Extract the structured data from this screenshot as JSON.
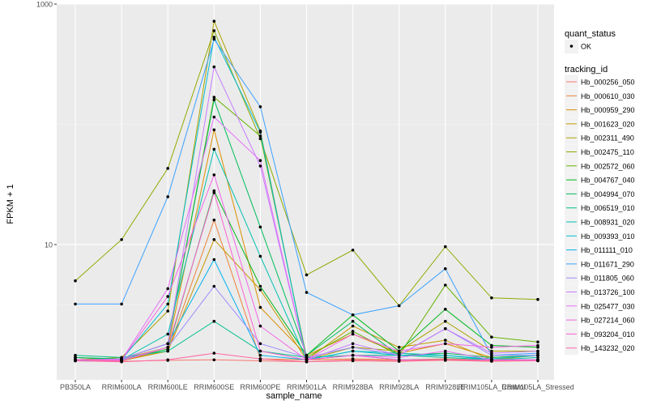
{
  "chart_data": {
    "type": "line",
    "xlabel": "sample_name",
    "ylabel": "FPKM + 1",
    "y_scale": "log10",
    "ylim": [
      1,
      1000
    ],
    "y_ticks": [
      {
        "value": 1000,
        "label": "1000"
      },
      {
        "value": 10,
        "label": "10"
      }
    ],
    "grid": true,
    "panel_background": "#ebebeb",
    "point_color": "#000000",
    "categories": [
      "PB350LA",
      "RRIM600LA",
      "RRIM600LE",
      "RRIM600SE",
      "RRIM600PE",
      "RRIM901LA",
      "RRIM928BA",
      "RRIM928LA",
      "RRIM928LE",
      "RRIM105LA_Control",
      "RRIM105LA_Stressed"
    ],
    "legend": {
      "position": "right",
      "point_section": {
        "title": "quant_status",
        "items": [
          "OK"
        ]
      },
      "color_section": {
        "title": "tracking_id"
      }
    },
    "series": [
      {
        "name": "Hb_000256_050",
        "color": "#F8766D",
        "values": [
          1.08,
          1.07,
          1.09,
          1.1,
          1.08,
          1.06,
          1.08,
          1.07,
          1.09,
          1.07,
          1.08
        ]
      },
      {
        "name": "Hb_000610_030",
        "color": "#EC8239",
        "values": [
          1.15,
          1.1,
          1.3,
          16.0,
          1.12,
          1.1,
          1.12,
          1.1,
          1.12,
          1.1,
          1.1
        ]
      },
      {
        "name": "Hb_000959_290",
        "color": "#DB8E00",
        "values": [
          1.1,
          1.12,
          1.4,
          90,
          3.0,
          1.2,
          1.8,
          1.25,
          1.5,
          1.15,
          1.2
        ]
      },
      {
        "name": "Hb_001623_020",
        "color": "#C79800",
        "values": [
          1.1,
          1.08,
          1.3,
          11.0,
          4.2,
          1.1,
          2.1,
          1.4,
          1.6,
          1.1,
          1.2
        ]
      },
      {
        "name": "Hb_002311_490",
        "color": "#AEA200",
        "values": [
          1.1,
          1.15,
          2.8,
          720,
          88,
          1.1,
          1.4,
          1.3,
          2.3,
          1.3,
          1.3
        ]
      },
      {
        "name": "Hb_002475_110",
        "color": "#8FAA00",
        "values": [
          5.0,
          11.0,
          43,
          600,
          76,
          5.6,
          9.0,
          3.1,
          9.6,
          3.6,
          3.5
        ]
      },
      {
        "name": "Hb_002572_060",
        "color": "#64B200",
        "values": [
          1.1,
          1.12,
          1.5,
          168,
          80,
          1.15,
          1.9,
          1.2,
          4.6,
          1.7,
          1.55
        ]
      },
      {
        "name": "Hb_004767_040",
        "color": "#00B81B",
        "values": [
          1.15,
          1.1,
          1.35,
          28,
          4.5,
          1.2,
          2.6,
          1.3,
          2.9,
          1.45,
          1.4
        ]
      },
      {
        "name": "Hb_004994_070",
        "color": "#00BD5C",
        "values": [
          1.15,
          1.12,
          1.5,
          160,
          14,
          1.2,
          2.3,
          1.2,
          1.25,
          1.15,
          1.2
        ]
      },
      {
        "name": "Hb_006519_010",
        "color": "#00C08D",
        "values": [
          1.2,
          1.15,
          1.3,
          2.3,
          1.3,
          1.15,
          1.2,
          1.2,
          1.15,
          1.1,
          1.1
        ]
      },
      {
        "name": "Hb_008931_020",
        "color": "#00C1B2",
        "values": [
          1.1,
          1.1,
          1.8,
          62,
          8.0,
          1.1,
          1.3,
          1.25,
          1.2,
          1.1,
          1.15
        ]
      },
      {
        "name": "Hb_009393_010",
        "color": "#00BDD4",
        "values": [
          1.1,
          1.1,
          3.2,
          530,
          86,
          1.1,
          1.3,
          1.2,
          1.2,
          1.12,
          1.2
        ]
      },
      {
        "name": "Hb_011111_010",
        "color": "#00B2F3",
        "values": [
          1.08,
          1.12,
          1.5,
          7.5,
          1.2,
          1.1,
          1.2,
          1.1,
          1.1,
          1.1,
          1.1
        ]
      },
      {
        "name": "Hb_011671_290",
        "color": "#3AA1FF",
        "values": [
          3.2,
          3.2,
          25,
          510,
          140,
          4.0,
          2.6,
          3.1,
          6.3,
          1.2,
          1.25
        ]
      },
      {
        "name": "Hb_011805_060",
        "color": "#9C8DFF",
        "values": [
          1.1,
          1.1,
          1.4,
          4.5,
          1.5,
          1.15,
          1.4,
          1.2,
          2.0,
          1.2,
          1.2
        ]
      },
      {
        "name": "Hb_013726_100",
        "color": "#C77CFF",
        "values": [
          1.1,
          1.12,
          1.5,
          300,
          45,
          1.1,
          1.5,
          1.2,
          2.0,
          1.25,
          1.3
        ]
      },
      {
        "name": "Hb_025477_030",
        "color": "#E46EF6",
        "values": [
          1.1,
          1.1,
          4.3,
          115,
          50,
          1.1,
          1.2,
          1.15,
          1.3,
          1.1,
          1.1
        ]
      },
      {
        "name": "Hb_027214_060",
        "color": "#F365E6",
        "values": [
          1.1,
          1.1,
          3.7,
          38,
          2.1,
          1.1,
          1.8,
          1.3,
          1.5,
          1.4,
          1.45
        ]
      },
      {
        "name": "Hb_093204_010",
        "color": "#FD61D1",
        "values": [
          1.1,
          1.08,
          1.4,
          27,
          1.3,
          1.1,
          1.2,
          1.1,
          1.1,
          1.1,
          1.1
        ]
      },
      {
        "name": "Hb_143232_020",
        "color": "#FF67A4",
        "values": [
          1.08,
          1.06,
          1.1,
          1.25,
          1.12,
          1.06,
          1.1,
          1.08,
          1.1,
          1.08,
          1.08
        ]
      }
    ]
  }
}
